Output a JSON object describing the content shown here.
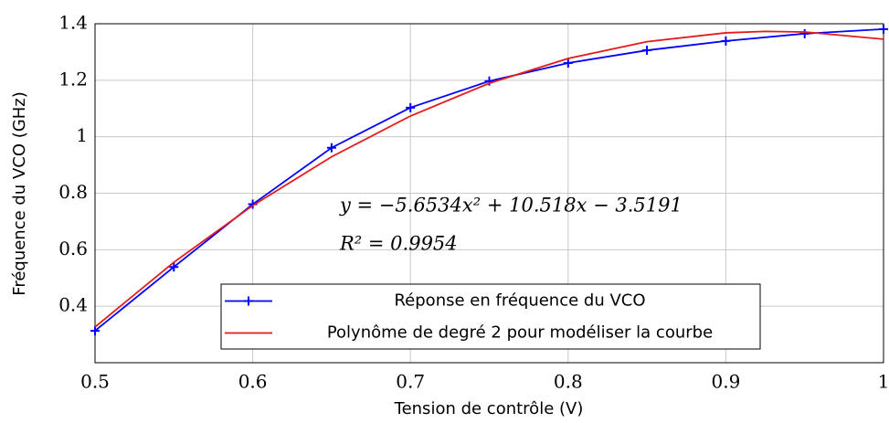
{
  "chart_data": {
    "type": "line",
    "xlabel": "Tension de contrôle (V)",
    "ylabel": "Fréquence du VCO (GHz)",
    "xlim": [
      0.5,
      1
    ],
    "xticks": [
      0.5,
      0.6,
      0.7,
      0.8,
      0.9,
      1
    ],
    "ylim": [
      0.2,
      1.4
    ],
    "yticks": [
      0.4,
      0.6,
      0.8,
      1,
      1.2,
      1.4
    ],
    "grid": true,
    "legend": "bottom",
    "annotations": [
      "y = −5.6534x² + 10.518x − 3.5191",
      "R² = 0.9954"
    ],
    "series": [
      {
        "name": "Réponse en fréquence du VCO",
        "color": "#0000ff",
        "marker": "+",
        "x": [
          0.5,
          0.55,
          0.6,
          0.65,
          0.7,
          0.75,
          0.8,
          0.85,
          0.9,
          0.95,
          1
        ],
        "values": [
          0.313,
          0.539,
          0.761,
          0.961,
          1.103,
          1.197,
          1.261,
          1.306,
          1.339,
          1.365,
          1.381
        ]
      },
      {
        "name": "Polynôme de degré 2 pour modéliser la courbe",
        "color": "#e41a1c",
        "x": [
          0.5,
          0.55,
          0.6,
          0.65,
          0.7,
          0.75,
          0.8,
          0.85,
          0.9,
          0.925,
          0.95,
          1
        ],
        "values": [
          0.3265,
          0.5557,
          0.7565,
          0.929,
          1.0733,
          1.1894,
          1.2771,
          1.3366,
          1.3678,
          1.3728,
          1.3708,
          1.3455
        ]
      }
    ]
  }
}
